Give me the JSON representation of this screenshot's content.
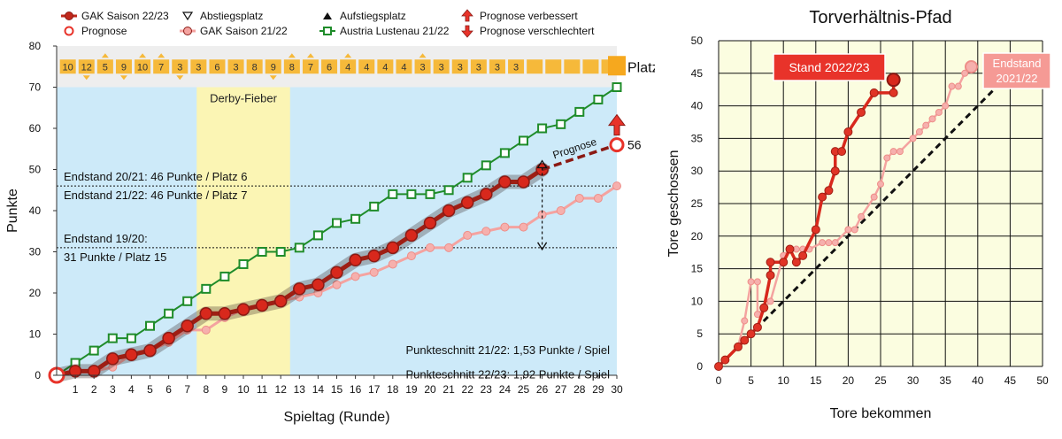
{
  "chart_data": [
    {
      "type": "line",
      "xlabel": "Spieltag (Runde)",
      "ylabel": "Punkte",
      "xlim": [
        0,
        30
      ],
      "ylim": [
        0,
        80
      ],
      "x_ticks": [
        1,
        2,
        3,
        4,
        5,
        6,
        7,
        8,
        9,
        10,
        11,
        12,
        13,
        14,
        15,
        16,
        17,
        18,
        19,
        20,
        21,
        22,
        23,
        24,
        25,
        26,
        27,
        28,
        29,
        30
      ],
      "y_ticks": [
        0,
        10,
        20,
        30,
        40,
        50,
        60,
        70,
        80
      ],
      "grid": false,
      "legend_items": [
        {
          "label": "GAK Saison 22/23",
          "color": "#c0281c",
          "marker": "filled-circle"
        },
        {
          "label": "Prognose",
          "color": "#e8332a",
          "marker": "open-circle"
        },
        {
          "label": "Abstiegsplatz",
          "color": "#000000",
          "marker": "down-triangle"
        },
        {
          "label": "GAK Saison 21/22",
          "color": "#f4a3a0",
          "marker": "filled-circle"
        },
        {
          "label": "Aufstiegsplatz",
          "color": "#000000",
          "marker": "up-triangle"
        },
        {
          "label": "Austria Lustenau 21/22",
          "color": "#1f8c2a",
          "marker": "open-square"
        },
        {
          "label": "Prognose verbessert",
          "color": "#e8332a",
          "marker": "up-arrow"
        },
        {
          "label": "Prognose verschlechtert",
          "color": "#e8332a",
          "marker": "down-arrow"
        }
      ],
      "series": [
        {
          "name": "GAK Saison 22/23",
          "color": "#c0281c",
          "x": [
            0,
            1,
            2,
            3,
            4,
            5,
            6,
            7,
            8,
            9,
            10,
            11,
            12,
            13,
            14,
            15,
            16,
            17,
            18,
            19,
            20,
            21,
            22,
            23,
            24,
            25,
            26
          ],
          "values": [
            0,
            1,
            1,
            4,
            5,
            6,
            9,
            12,
            15,
            15,
            16,
            17,
            18,
            21,
            22,
            25,
            28,
            29,
            31,
            34,
            37,
            40,
            42,
            44,
            47,
            47,
            50
          ]
        },
        {
          "name": "GAK Saison 21/22",
          "color": "#f4a3a0",
          "x": [
            0,
            1,
            2,
            3,
            4,
            5,
            6,
            7,
            8,
            9,
            10,
            11,
            12,
            13,
            14,
            15,
            16,
            17,
            18,
            19,
            20,
            21,
            22,
            23,
            24,
            25,
            26,
            27,
            28,
            29,
            30
          ],
          "values": [
            0,
            1,
            1,
            2,
            5,
            6,
            8,
            11,
            11,
            14,
            16,
            17,
            18,
            19,
            20,
            22,
            24,
            25,
            27,
            29,
            31,
            31,
            34,
            35,
            36,
            36,
            39,
            40,
            43,
            43,
            46
          ]
        },
        {
          "name": "Austria Lustenau 21/22",
          "color": "#1f8c2a",
          "x": [
            0,
            1,
            2,
            3,
            4,
            5,
            6,
            7,
            8,
            9,
            10,
            11,
            12,
            13,
            14,
            15,
            16,
            17,
            18,
            19,
            20,
            21,
            22,
            23,
            24,
            25,
            26,
            27,
            28,
            29,
            30
          ],
          "values": [
            0,
            3,
            6,
            9,
            9,
            12,
            15,
            18,
            21,
            24,
            27,
            30,
            30,
            31,
            34,
            37,
            38,
            41,
            44,
            44,
            44,
            45,
            48,
            51,
            54,
            57,
            60,
            61,
            64,
            67,
            70
          ]
        },
        {
          "name": "Prognose",
          "color": "#8b1a14",
          "x": [
            26,
            30
          ],
          "values": [
            50,
            56
          ]
        }
      ],
      "forecast_end": {
        "x": 30,
        "y": 56,
        "label": "56"
      },
      "forecast_label": "Prognose",
      "range_arrow": {
        "x": 26,
        "from": 50,
        "to": 31
      },
      "reference_lines": [
        {
          "y": 46,
          "label_above": "Endstand 20/21: 46 Punkte / Platz 6",
          "label_below": "Endstand 21/22: 46 Punkte / Platz 7"
        },
        {
          "y": 31,
          "label_above": "Endstand 19/20:",
          "label_below": "31 Punkte / Platz 15"
        }
      ],
      "highlight_band": {
        "from": 7.5,
        "to": 12.5,
        "label": "Derby-Fieber"
      },
      "ranking_row": {
        "title": "Platz",
        "values": [
          "10",
          "12",
          "5",
          "9",
          "10",
          "7",
          "3",
          "3",
          "6",
          "3",
          "8",
          "9",
          "8",
          "7",
          "6",
          "4",
          "4",
          "4",
          "4",
          "3",
          "3",
          "3",
          "3",
          "3",
          "3",
          "",
          "",
          "",
          "",
          ""
        ],
        "markers": [
          "none",
          "down",
          "up",
          "down",
          "up",
          "up",
          "down",
          "none",
          "none",
          "none",
          "none",
          "down",
          "up",
          "up",
          "none",
          "up",
          "none",
          "none",
          "none",
          "up",
          "none",
          "none",
          "none",
          "none",
          "none",
          "none",
          "none",
          "none",
          "none",
          "none"
        ]
      },
      "annotations": [
        "Punkteschnitt 21/22: 1,53 Punkte / Spiel",
        "Punkteschnitt 22/23: 1,92 Punkte / Spiel"
      ]
    },
    {
      "type": "scatter",
      "title": "Torverhältnis-Pfad",
      "xlabel": "Tore  bekommen",
      "ylabel": "Tore geschossen",
      "xlim": [
        0,
        50
      ],
      "ylim": [
        0,
        50
      ],
      "x_ticks": [
        0,
        5,
        10,
        15,
        20,
        25,
        30,
        35,
        40,
        45,
        50
      ],
      "y_ticks": [
        0,
        5,
        10,
        15,
        20,
        25,
        30,
        35,
        40,
        45,
        50
      ],
      "grid": true,
      "series": [
        {
          "name": "2022/23",
          "color": "#d8281c",
          "x": [
            0,
            1,
            3,
            4,
            5,
            6,
            7,
            8,
            8,
            10,
            11,
            12,
            13,
            15,
            16,
            17,
            18,
            18,
            19,
            20,
            22,
            24,
            27,
            27
          ],
          "values": [
            0,
            1,
            3,
            4,
            5,
            6,
            9,
            14,
            16,
            16,
            18,
            16,
            17,
            21,
            26,
            27,
            30,
            33,
            33,
            36,
            39,
            42,
            42,
            44
          ]
        },
        {
          "name": "2021/22",
          "color": "#f4a3a0",
          "x": [
            0,
            1,
            3,
            4,
            5,
            6,
            6,
            8,
            10,
            11,
            12,
            13,
            14,
            16,
            17,
            18,
            20,
            21,
            22,
            24,
            25,
            26,
            27,
            28,
            30,
            31,
            32,
            33,
            34,
            35,
            36,
            37,
            38,
            39
          ],
          "values": [
            0,
            1,
            3,
            7,
            13,
            13,
            8,
            10,
            17,
            18,
            18,
            18,
            18,
            19,
            19,
            19,
            21,
            21,
            23,
            26,
            28,
            32,
            33,
            33,
            35,
            36,
            37,
            38,
            39,
            40,
            43,
            43,
            45,
            46
          ]
        }
      ],
      "diagonal": true,
      "labels": [
        {
          "text": "Stand 2022/23"
        },
        {
          "text": "Endstand",
          "text2": "2021/22"
        }
      ]
    }
  ]
}
